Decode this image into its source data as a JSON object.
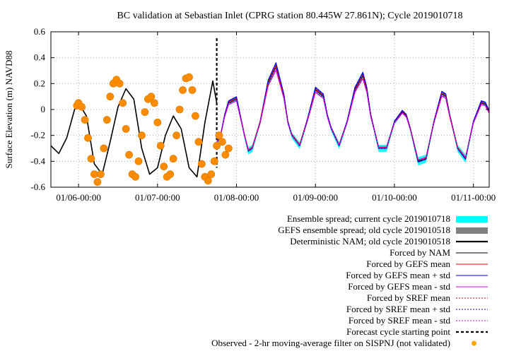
{
  "chart_data": {
    "type": "line",
    "title": "BC validation at Sebastian Inlet (CPRG station 80.445W 27.861N); Cycle 2019010718",
    "ylabel": "Surface Elevation (m) NAVD88",
    "xlabel": "",
    "x_unit": "days since 01/06-00:00",
    "xlim": [
      -0.35,
      5.2
    ],
    "ylim": [
      -0.6,
      0.6
    ],
    "y_ticks": [
      -0.6,
      -0.4,
      -0.2,
      0,
      0.2,
      0.4,
      0.6
    ],
    "y_tick_labels": [
      "-0.6",
      "-0.4",
      "-0.2",
      "0",
      "0.2",
      "0.4",
      "0.6"
    ],
    "x_ticks": [
      0,
      1,
      2,
      3,
      4,
      5
    ],
    "x_tick_labels": [
      "01/06-00:00",
      "01/07-00:00",
      "01/08-00:00",
      "01/09-00:00",
      "01/10-00:00",
      "01/11-00:00"
    ],
    "grid": true,
    "legend_position": "below plot, right-aligned",
    "forecast_cycle_x": 1.75,
    "deterministic_nam_old": {
      "x": [
        -0.35,
        -0.25,
        -0.15,
        -0.05,
        0.0,
        0.1,
        0.2,
        0.3,
        0.4,
        0.5,
        0.6,
        0.7,
        0.8,
        0.9,
        1.0,
        1.1,
        1.2,
        1.3,
        1.4,
        1.5,
        1.6,
        1.7,
        1.75
      ],
      "y": [
        -0.28,
        -0.34,
        -0.22,
        0.0,
        0.05,
        -0.05,
        -0.42,
        -0.5,
        -0.25,
        0.02,
        0.16,
        0.08,
        -0.3,
        -0.5,
        -0.45,
        -0.2,
        -0.05,
        -0.15,
        -0.45,
        -0.52,
        -0.1,
        0.22,
        0.05
      ]
    },
    "forecast_series": [
      {
        "name": "Forced by NAM",
        "color": "#000000",
        "style": "solid",
        "amp_scale": 1.0,
        "offset": 0.0
      },
      {
        "name": "Forced by GEFS mean",
        "color": "#e00000",
        "style": "solid",
        "amp_scale": 1.0,
        "offset": 0.01
      },
      {
        "name": "Forced by GEFS mean + std",
        "color": "#0000e0",
        "style": "solid",
        "amp_scale": 1.05,
        "offset": 0.015
      },
      {
        "name": "Forced by GEFS mean - std",
        "color": "#e000e0",
        "style": "solid",
        "amp_scale": 0.95,
        "offset": -0.01
      },
      {
        "name": "Forced by SREF mean",
        "color": "#e00000",
        "style": "dotted",
        "amp_scale": 1.0,
        "offset": 0.005
      },
      {
        "name": "Forced by SREF mean + std",
        "color": "#0000e0",
        "style": "dotted",
        "amp_scale": 1.04,
        "offset": 0.01
      },
      {
        "name": "Forced by SREF mean - std",
        "color": "#e000e0",
        "style": "dotted",
        "amp_scale": 0.96,
        "offset": -0.005
      }
    ],
    "forecast_shape": {
      "x": [
        1.75,
        1.8,
        1.85,
        1.9,
        2.0,
        2.1,
        2.15,
        2.2,
        2.3,
        2.4,
        2.5,
        2.6,
        2.65,
        2.7,
        2.8,
        2.9,
        3.0,
        3.1,
        3.15,
        3.2,
        3.3,
        3.4,
        3.5,
        3.6,
        3.65,
        3.7,
        3.8,
        3.9,
        4.0,
        4.1,
        4.15,
        4.2,
        4.3,
        4.4,
        4.5,
        4.6,
        4.65,
        4.7,
        4.8,
        4.9,
        5.0,
        5.1,
        5.15,
        5.2
      ],
      "y": [
        -0.26,
        -0.2,
        -0.05,
        0.05,
        0.08,
        -0.2,
        -0.32,
        -0.3,
        -0.1,
        0.2,
        0.33,
        0.1,
        -0.1,
        -0.2,
        -0.28,
        -0.08,
        0.15,
        0.1,
        -0.05,
        -0.15,
        -0.28,
        -0.1,
        0.15,
        0.26,
        0.15,
        -0.05,
        -0.3,
        -0.3,
        -0.1,
        -0.02,
        -0.05,
        -0.15,
        -0.4,
        -0.38,
        -0.1,
        0.12,
        0.1,
        -0.05,
        -0.3,
        -0.38,
        -0.1,
        0.05,
        0.04,
        -0.02
      ]
    },
    "spread_current": {
      "name": "Ensemble spread; current cycle 2019010718",
      "color": "#00ffff"
    },
    "spread_old": {
      "name": "GEFS ensemble spread; old cycle 2019010518",
      "color": "#808080"
    },
    "observed": {
      "name": "Observed - 2-hr moving-average filter on SISPNJ (not validated)",
      "color": "#ff8c00",
      "edge_color": "#e08000",
      "x": [
        -0.02,
        0.0,
        0.04,
        0.08,
        0.12,
        0.16,
        0.2,
        0.24,
        0.28,
        0.32,
        0.36,
        0.4,
        0.44,
        0.48,
        0.52,
        0.56,
        0.6,
        0.64,
        0.68,
        0.72,
        0.76,
        0.8,
        0.84,
        0.88,
        0.92,
        0.96,
        1.0,
        1.04,
        1.08,
        1.12,
        1.16,
        1.2,
        1.24,
        1.28,
        1.32,
        1.36,
        1.4,
        1.44,
        1.48,
        1.52,
        1.56,
        1.6,
        1.64,
        1.68,
        1.72,
        1.75,
        1.78,
        1.82,
        1.86,
        1.9
      ],
      "y": [
        0.03,
        0.05,
        0.02,
        -0.08,
        -0.22,
        -0.38,
        -0.5,
        -0.56,
        -0.5,
        -0.3,
        -0.08,
        0.1,
        0.2,
        0.23,
        0.2,
        0.05,
        -0.15,
        -0.35,
        -0.5,
        -0.52,
        -0.4,
        -0.2,
        -0.02,
        0.08,
        0.1,
        0.05,
        -0.1,
        -0.28,
        -0.44,
        -0.52,
        -0.5,
        -0.38,
        -0.2,
        0.0,
        0.15,
        0.24,
        0.25,
        0.15,
        -0.05,
        -0.25,
        -0.42,
        -0.52,
        -0.55,
        -0.5,
        -0.4,
        -0.28,
        -0.2,
        -0.25,
        -0.35,
        -0.3
      ]
    },
    "legend": [
      {
        "label": "Ensemble spread; current cycle 2019010718",
        "kind": "band",
        "color": "#00ffff"
      },
      {
        "label": "GEFS ensemble spread; old cycle 2019010518",
        "kind": "band",
        "color": "#808080"
      },
      {
        "label": "Deterministic NAM; old cycle 2019010518",
        "kind": "line",
        "color": "#000000",
        "style": "solid",
        "bold": true
      },
      {
        "label": "Forced by NAM",
        "kind": "line",
        "color": "#000000",
        "style": "solid",
        "bold": false
      },
      {
        "label": "Forced by GEFS mean",
        "kind": "line",
        "color": "#e00000",
        "style": "solid",
        "bold": false
      },
      {
        "label": "Forced by GEFS mean + std",
        "kind": "line",
        "color": "#0000e0",
        "style": "solid",
        "bold": false
      },
      {
        "label": "Forced by GEFS mean - std",
        "kind": "line",
        "color": "#e000e0",
        "style": "solid",
        "bold": false
      },
      {
        "label": "Forced by SREF mean",
        "kind": "line",
        "color": "#e00000",
        "style": "dotted",
        "bold": false
      },
      {
        "label": "Forced by SREF mean + std",
        "kind": "line",
        "color": "#0000e0",
        "style": "dotted",
        "bold": false
      },
      {
        "label": "Forced by SREF mean - std",
        "kind": "line",
        "color": "#e000e0",
        "style": "dotted",
        "bold": false
      },
      {
        "label": "Forecast cycle starting point",
        "kind": "line",
        "color": "#000000",
        "style": "dashed",
        "bold": true
      },
      {
        "label": "Observed - 2-hr moving-average filter on SISPNJ (not validated)",
        "kind": "dot",
        "color": "#ffa500"
      }
    ]
  }
}
